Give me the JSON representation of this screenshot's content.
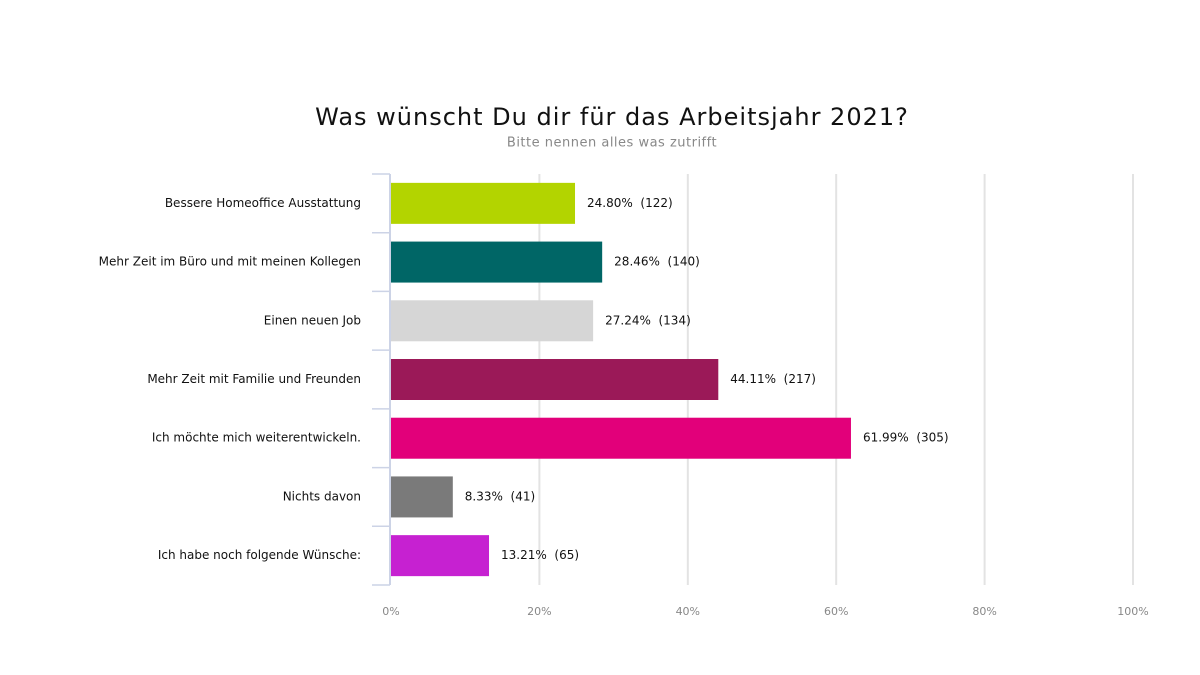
{
  "chart_data": {
    "type": "hbar",
    "title": "Was wünscht Du dir für das Arbeitsjahr 2021?",
    "subtitle": "Bitte nennen alles was zutrifft",
    "categories": [
      "Bessere Homeoffice Ausstattung",
      "Mehr Zeit im Büro und mit meinen Kollegen",
      "Einen neuen Job",
      "Mehr Zeit mit Familie und Freunden",
      "Ich möchte mich weiterentwickeln.",
      "Nichts davon",
      "Ich habe noch folgende Wünsche:"
    ],
    "values": [
      24.8,
      28.46,
      27.24,
      44.11,
      61.99,
      8.33,
      13.21
    ],
    "value_labels": [
      "24.80%  (122)",
      "28.46%  (140)",
      "27.24%  (134)",
      "44.11%  (217)",
      "61.99%  (305)",
      "8.33%  (41)",
      "13.21%  (65)"
    ],
    "colors": [
      "#b3d400",
      "#006666",
      "#d6d6d6",
      "#9b1958",
      "#e2007a",
      "#7a7a7a",
      "#c621d1"
    ],
    "xlim": [
      0,
      100
    ],
    "xticks": [
      {
        "value": 0,
        "label": "0%"
      },
      {
        "value": 20,
        "label": "20%"
      },
      {
        "value": 40,
        "label": "40%"
      },
      {
        "value": 60,
        "label": "60%"
      },
      {
        "value": 80,
        "label": "80%"
      },
      {
        "value": 100,
        "label": "100%"
      }
    ],
    "grid": true
  }
}
